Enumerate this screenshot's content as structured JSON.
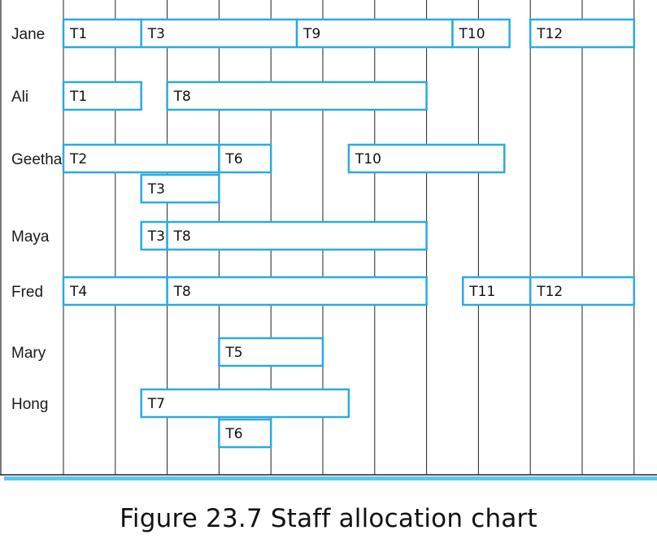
{
  "caption": {
    "number": "Figure 23.7",
    "title": "Staff allocation chart"
  },
  "colors": {
    "task_border": "#29abe2",
    "baseline": "#5bc8ec",
    "grid": "#222222"
  },
  "chart_data": {
    "type": "gantt",
    "columns": 11,
    "staff": [
      {
        "name": "Jane",
        "tasks": [
          {
            "label": "T1",
            "start": 0,
            "end": 1.5
          },
          {
            "label": "T3",
            "start": 1.5,
            "end": 4.5
          },
          {
            "label": "T9",
            "start": 4.5,
            "end": 7.5
          },
          {
            "label": "T10",
            "start": 7.5,
            "end": 8.6
          },
          {
            "label": "T12",
            "start": 9,
            "end": 11
          }
        ]
      },
      {
        "name": "Ali",
        "tasks": [
          {
            "label": "T1",
            "start": 0,
            "end": 1.5
          },
          {
            "label": "T8",
            "start": 2,
            "end": 7
          }
        ]
      },
      {
        "name": "Geetha",
        "tasks": [
          {
            "label": "T2",
            "start": 0,
            "end": 3
          },
          {
            "label": "T6",
            "start": 3,
            "end": 4
          },
          {
            "label": "T10",
            "start": 5.5,
            "end": 8.5
          },
          {
            "label": "T3",
            "start": 1.5,
            "end": 3,
            "sub": true
          }
        ]
      },
      {
        "name": "Maya",
        "tasks": [
          {
            "label": "T3",
            "start": 1.5,
            "end": 2
          },
          {
            "label": "T8",
            "start": 2,
            "end": 7
          }
        ]
      },
      {
        "name": "Fred",
        "tasks": [
          {
            "label": "T4",
            "start": 0,
            "end": 2
          },
          {
            "label": "T8",
            "start": 2,
            "end": 7
          },
          {
            "label": "T11",
            "start": 7.7,
            "end": 9
          },
          {
            "label": "T12",
            "start": 9,
            "end": 11
          }
        ]
      },
      {
        "name": "Mary",
        "tasks": [
          {
            "label": "T5",
            "start": 3,
            "end": 5
          }
        ]
      },
      {
        "name": "Hong",
        "tasks": [
          {
            "label": "T7",
            "start": 1.5,
            "end": 5.5
          },
          {
            "label": "T6",
            "start": 3,
            "end": 4,
            "sub": true
          }
        ]
      }
    ]
  }
}
